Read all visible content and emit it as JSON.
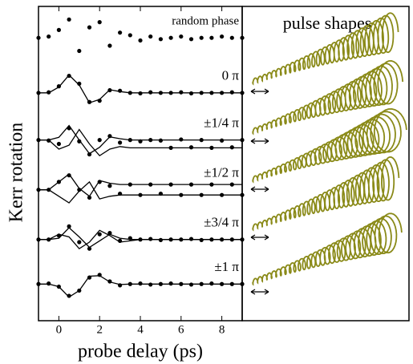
{
  "chart_data": {
    "type": "scatter",
    "x_label": "probe delay (ps)",
    "y_label": "Kerr rotation",
    "xlim": [
      -1,
      9
    ],
    "xticks": [
      0,
      2,
      4,
      6,
      8
    ],
    "ylim": [
      0,
      12
    ],
    "x": [
      -1,
      -0.5,
      0,
      0.5,
      1,
      1.5,
      2,
      2.5,
      3,
      3.5,
      4,
      4.5,
      5,
      5.5,
      6,
      6.5,
      7,
      7.5,
      8,
      8.5,
      9
    ],
    "series": [
      {
        "name": "random phase",
        "style": "markers",
        "color": "#000000",
        "values": [
          10.8,
          10.85,
          11.1,
          11.5,
          10.3,
          11.2,
          11.4,
          10.5,
          11.0,
          10.9,
          10.7,
          10.85,
          10.75,
          10.8,
          10.85,
          10.75,
          10.8,
          10.8,
          10.85,
          10.8,
          10.8
        ]
      },
      {
        "name": "0 π",
        "style": "markers",
        "color": "#000000",
        "values": [
          8.7,
          8.72,
          8.95,
          9.35,
          9.05,
          8.35,
          8.4,
          8.8,
          8.78,
          8.7,
          8.68,
          8.72,
          8.7,
          8.7,
          8.72,
          8.68,
          8.7,
          8.7,
          8.7,
          8.72,
          8.7
        ]
      },
      {
        "style": "line",
        "color": "#000000",
        "values": [
          8.7,
          8.7,
          8.92,
          9.38,
          9.0,
          8.32,
          8.45,
          8.82,
          8.75,
          8.7,
          8.7,
          8.7,
          8.7,
          8.7,
          8.7,
          8.7,
          8.7,
          8.7,
          8.7,
          8.7,
          8.7
        ]
      },
      {
        "name": "±1/4 π",
        "style": "markers",
        "color": "#000000",
        "values": [
          6.9,
          6.88,
          6.75,
          7.35,
          6.85,
          6.35,
          6.9,
          7.05,
          6.8,
          6.9,
          6.85,
          6.9,
          6.88,
          6.6,
          6.92,
          6.62,
          6.9,
          6.6,
          6.88,
          6.62,
          6.9
        ]
      },
      {
        "style": "line",
        "color": "#000000",
        "values": [
          6.9,
          6.9,
          7.0,
          7.45,
          6.9,
          6.38,
          6.62,
          7.02,
          6.95,
          6.9,
          6.9,
          6.9,
          6.9,
          6.9,
          6.9,
          6.9,
          6.9,
          6.9,
          6.9,
          6.9,
          6.9
        ]
      },
      {
        "style": "line",
        "color": "#000000",
        "values": [
          6.9,
          6.9,
          6.55,
          6.7,
          7.3,
          6.75,
          6.3,
          6.55,
          6.65,
          6.6,
          6.6,
          6.6,
          6.6,
          6.6,
          6.6,
          6.6,
          6.6,
          6.6,
          6.6,
          6.6,
          6.6
        ]
      },
      {
        "name": "±1/2 π",
        "style": "markers",
        "color": "#000000",
        "values": [
          5.0,
          5.0,
          5.3,
          5.55,
          5.0,
          4.7,
          5.3,
          5.15,
          4.85,
          5.2,
          4.8,
          5.2,
          4.85,
          5.2,
          4.8,
          5.2,
          4.8,
          5.2,
          4.8,
          5.2,
          4.8
        ]
      },
      {
        "style": "line",
        "color": "#000000",
        "values": [
          5.0,
          5.0,
          5.3,
          5.6,
          5.05,
          4.75,
          5.35,
          5.25,
          5.2,
          5.2,
          5.2,
          5.2,
          5.2,
          5.2,
          5.2,
          5.2,
          5.2,
          5.2,
          5.2,
          5.2,
          5.2
        ]
      },
      {
        "style": "line",
        "color": "#000000",
        "values": [
          5.0,
          5.0,
          4.75,
          4.5,
          4.95,
          5.3,
          4.65,
          4.75,
          4.8,
          4.8,
          4.8,
          4.8,
          4.8,
          4.8,
          4.8,
          4.8,
          4.8,
          4.8,
          4.8,
          4.8,
          4.8
        ]
      },
      {
        "name": "±3/4 π",
        "style": "markers",
        "color": "#000000",
        "values": [
          3.1,
          3.1,
          3.25,
          3.6,
          3.0,
          2.75,
          3.3,
          3.35,
          3.05,
          3.15,
          3.1,
          3.12,
          3.08,
          3.1,
          3.1,
          3.12,
          3.08,
          3.1,
          3.1,
          3.1,
          3.1
        ]
      },
      {
        "style": "line",
        "color": "#000000",
        "values": [
          3.1,
          3.1,
          3.15,
          3.55,
          3.2,
          2.8,
          3.05,
          3.3,
          3.15,
          3.1,
          3.1,
          3.1,
          3.1,
          3.1,
          3.1,
          3.1,
          3.1,
          3.1,
          3.1,
          3.1,
          3.1
        ]
      },
      {
        "style": "line",
        "color": "#000000",
        "values": [
          3.1,
          3.1,
          3.3,
          3.2,
          2.75,
          3.0,
          3.45,
          3.25,
          3.0,
          3.05,
          3.1,
          3.1,
          3.1,
          3.1,
          3.1,
          3.1,
          3.1,
          3.1,
          3.1,
          3.1,
          3.1
        ]
      },
      {
        "name": "±1 π",
        "style": "markers",
        "color": "#000000",
        "values": [
          1.4,
          1.42,
          1.3,
          0.95,
          1.15,
          1.65,
          1.75,
          1.5,
          1.35,
          1.4,
          1.42,
          1.38,
          1.4,
          1.42,
          1.4,
          1.38,
          1.4,
          1.42,
          1.4,
          1.4,
          1.4
        ]
      },
      {
        "style": "line",
        "color": "#000000",
        "values": [
          1.4,
          1.4,
          1.3,
          0.9,
          1.15,
          1.7,
          1.72,
          1.48,
          1.38,
          1.4,
          1.4,
          1.4,
          1.4,
          1.4,
          1.4,
          1.4,
          1.4,
          1.4,
          1.4,
          1.4,
          1.4
        ]
      }
    ]
  },
  "pulse_panel": {
    "title": "pulse shapes",
    "color": "#8a8a18"
  }
}
